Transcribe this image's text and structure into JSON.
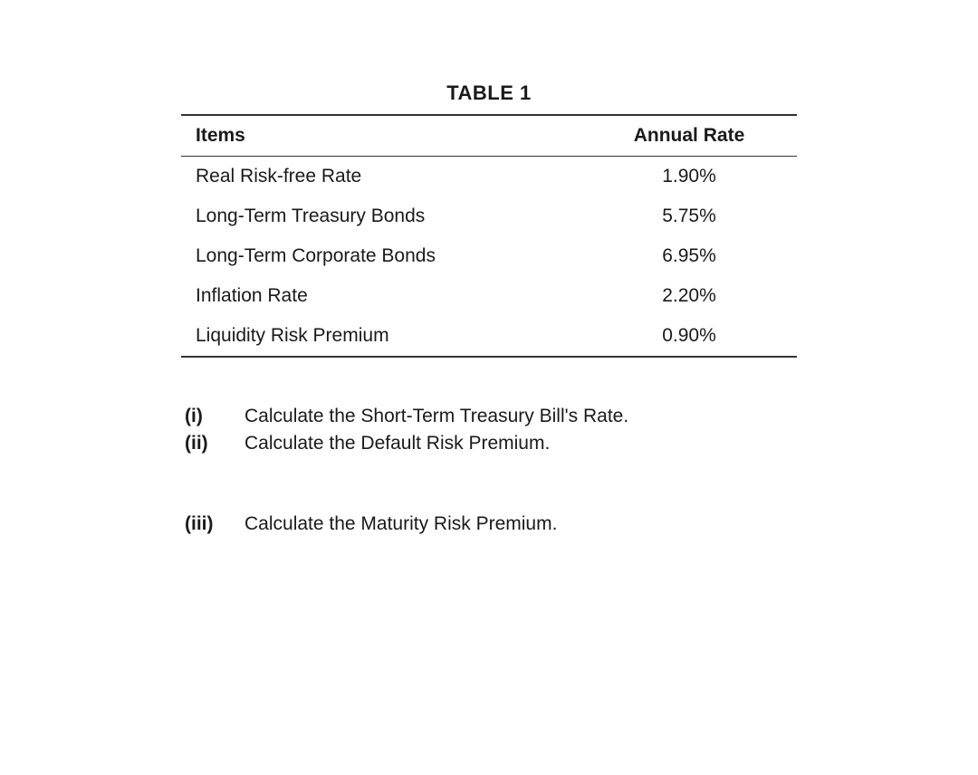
{
  "table": {
    "title": "TABLE 1",
    "columns": [
      "Items",
      "Annual Rate"
    ],
    "rows": [
      {
        "item": "Real Risk-free Rate",
        "rate": "1.90%"
      },
      {
        "item": "Long-Term Treasury Bonds",
        "rate": "5.75%"
      },
      {
        "item": "Long-Term Corporate Bonds",
        "rate": "6.95%"
      },
      {
        "item": "Inflation Rate",
        "rate": "2.20%"
      },
      {
        "item": "Liquidity Risk Premium",
        "rate": "0.90%"
      }
    ]
  },
  "questions": [
    {
      "label": "(i)",
      "text": "Calculate the Short-Term Treasury Bill's Rate."
    },
    {
      "label": "(ii)",
      "text": "Calculate the Default Risk Premium."
    },
    {
      "label": "(iii)",
      "text": "Calculate the Maturity Risk Premium."
    }
  ],
  "styling": {
    "background_color": "#ffffff",
    "text_color": "#1a1a1a",
    "border_color": "#333333",
    "font_family": "Arial, Helvetica, sans-serif",
    "title_fontsize": 22,
    "body_fontsize": 21,
    "table_width_pct": 100,
    "rate_col_width_pct": 35,
    "page_padding_top": 90,
    "page_padding_sides": 200,
    "question_label_width": 70,
    "question_block_gap": 58
  }
}
